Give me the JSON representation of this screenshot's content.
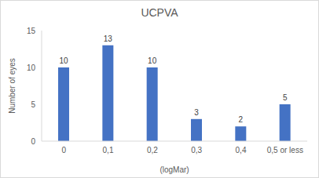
{
  "chart_data": {
    "type": "bar",
    "title": "UCPVA",
    "x_label": "(logMar)",
    "y_label": "Number of eyes",
    "categories": [
      "0",
      "0,1",
      "0,2",
      "0,3",
      "0,4",
      "0,5 or less"
    ],
    "values": [
      10,
      13,
      10,
      3,
      2,
      5
    ],
    "color": "#4472c4",
    "ylim": [
      0,
      15
    ],
    "yticks": [
      0,
      5,
      10,
      15
    ],
    "grid": false,
    "data_labels": true
  }
}
